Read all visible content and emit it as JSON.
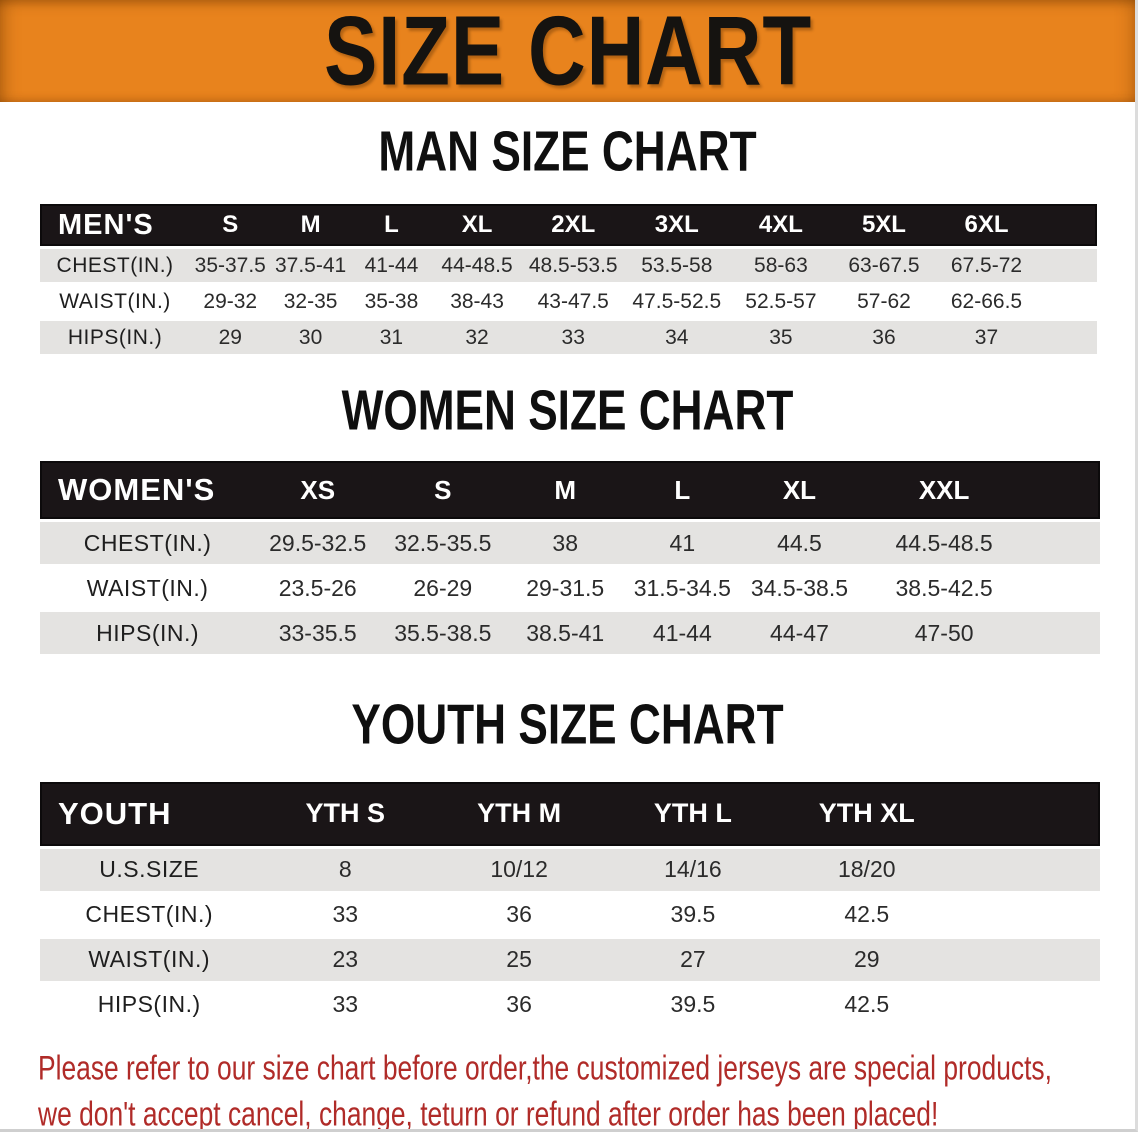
{
  "banner": {
    "title": "SIZE CHART"
  },
  "sections": [
    {
      "heading": "MAN SIZE CHART",
      "table": {
        "header_label": "MEN'S",
        "columns": [
          "S",
          "M",
          "L",
          "XL",
          "2XL",
          "3XL",
          "4XL",
          "5XL",
          "6XL"
        ],
        "rows": [
          {
            "label": "CHEST(IN.)",
            "values": [
              "35-37.5",
              "37.5-41",
              "41-44",
              "44-48.5",
              "48.5-53.5",
              "53.5-58",
              "58-63",
              "63-67.5",
              "67.5-72"
            ]
          },
          {
            "label": "WAIST(IN.)",
            "values": [
              "29-32",
              "32-35",
              "35-38",
              "38-43",
              "43-47.5",
              "47.5-52.5",
              "52.5-57",
              "57-62",
              "62-66.5"
            ]
          },
          {
            "label": "HIPS(IN.)",
            "values": [
              "29",
              "30",
              "31",
              "32",
              "33",
              "34",
              "35",
              "36",
              "37"
            ]
          }
        ]
      }
    },
    {
      "heading": "WOMEN SIZE CHART",
      "table": {
        "header_label": "WOMEN'S",
        "columns": [
          "XS",
          "S",
          "M",
          "L",
          "XL",
          "XXL"
        ],
        "rows": [
          {
            "label": "CHEST(IN.)",
            "values": [
              "29.5-32.5",
              "32.5-35.5",
              "38",
              "41",
              "44.5",
              "44.5-48.5"
            ]
          },
          {
            "label": "WAIST(IN.)",
            "values": [
              "23.5-26",
              "26-29",
              "29-31.5",
              "31.5-34.5",
              "34.5-38.5",
              "38.5-42.5"
            ]
          },
          {
            "label": "HIPS(IN.)",
            "values": [
              "33-35.5",
              "35.5-38.5",
              "38.5-41",
              "41-44",
              "44-47",
              "47-50"
            ]
          }
        ]
      }
    },
    {
      "heading": "YOUTH SIZE CHART",
      "table": {
        "header_label": "YOUTH",
        "columns": [
          "YTH S",
          "YTH M",
          "YTH L",
          "YTH XL"
        ],
        "rows": [
          {
            "label": "U.S.SIZE",
            "values": [
              "8",
              "10/12",
              "14/16",
              "18/20"
            ]
          },
          {
            "label": "CHEST(IN.)",
            "values": [
              "33",
              "36",
              "39.5",
              "42.5"
            ]
          },
          {
            "label": "WAIST(IN.)",
            "values": [
              "23",
              "25",
              "27",
              "29"
            ]
          },
          {
            "label": "HIPS(IN.)",
            "values": [
              "33",
              "36",
              "39.5",
              "42.5"
            ]
          }
        ]
      }
    }
  ],
  "disclaimer": {
    "line1": "Please refer to our size chart before order,the customized jerseys are special products,",
    "line2": "we don't accept cancel, change, teturn or refund after order has been placed!"
  },
  "colors": {
    "banner_bg": "#E8831D",
    "header_bar": "#1A1517",
    "row_stripe": "#E4E3E1",
    "disclaimer_text": "#B02B28"
  }
}
